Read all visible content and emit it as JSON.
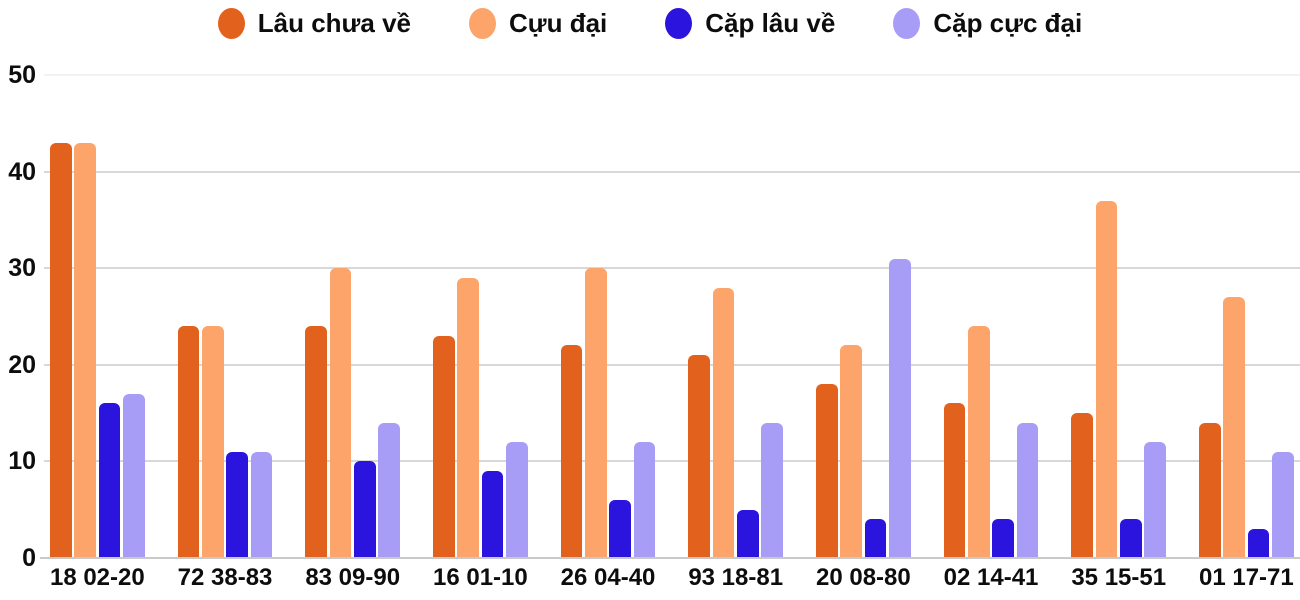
{
  "chart_data": {
    "type": "bar",
    "title": "",
    "xlabel": "",
    "ylabel": "",
    "categories": [
      "18 02-20",
      "72 38-83",
      "83 09-90",
      "16 01-10",
      "26 04-40",
      "93 18-81",
      "20 08-80",
      "02 14-41",
      "35 15-51",
      "01 17-71"
    ],
    "series": [
      {
        "name": "Lâu chưa về",
        "color": "#E2621D",
        "values": [
          43,
          24,
          24,
          23,
          22,
          21,
          18,
          16,
          15,
          14
        ]
      },
      {
        "name": "Cựu đại",
        "color": "#FCA469",
        "values": [
          43,
          24,
          30,
          29,
          30,
          28,
          22,
          24,
          37,
          27
        ]
      },
      {
        "name": "Cặp lâu về",
        "color": "#2C14DF",
        "values": [
          16,
          11,
          10,
          9,
          6,
          5,
          4,
          4,
          4,
          3
        ]
      },
      {
        "name": "Cặp cực đại",
        "color": "#A79DF6",
        "values": [
          17,
          11,
          14,
          12,
          12,
          14,
          31,
          14,
          12,
          11
        ]
      }
    ],
    "y_ticks": [
      0,
      10,
      20,
      30,
      40,
      50
    ],
    "ylim": [
      0,
      50
    ],
    "grid": true,
    "legend_position": "top",
    "colors": {
      "grid_line": "#d8d8d8",
      "grid_line_top": "#f2f2f2",
      "axis_line": "#c9c9c9",
      "text": "#0d0d0d",
      "background": "#ffffff"
    }
  }
}
